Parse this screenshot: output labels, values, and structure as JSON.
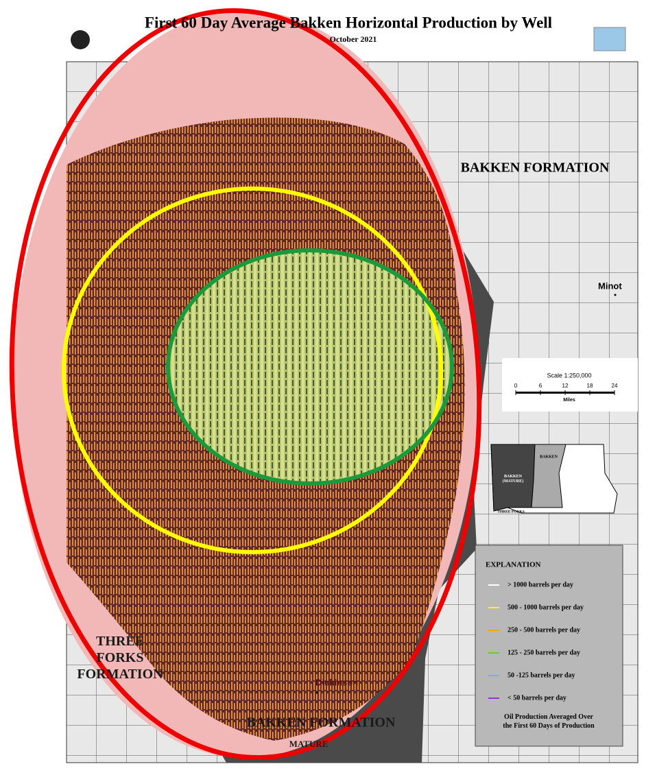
{
  "header": {
    "title": "First 60 Day Average Bakken Horizontal Production by Well",
    "subtitle": "October 2021"
  },
  "map_labels": {
    "bakken_top": "BAKKEN FORMATION",
    "minot": "Minot",
    "dickinson": "Dickinson",
    "three_forks": [
      "THREE",
      "FORKS",
      "FORMATION"
    ],
    "bakken_bottom": "BAKKEN FORMATION",
    "mature": "MATURE"
  },
  "scale": {
    "title": "Scale  1:250,000",
    "ticks": [
      0,
      6,
      12,
      18,
      24
    ],
    "unit": "Miles"
  },
  "inset": {
    "mature": [
      "BAKKEN",
      "(MATURE)"
    ],
    "bakken": "BAKKEN",
    "three_forks": "THREE FORKS"
  },
  "legend": {
    "title": "EXPLANATION",
    "items": [
      {
        "label": "> 1000 barrels per day",
        "color": "#ffffff"
      },
      {
        "label": "500 - 1000 barrels per day",
        "color": "#ffff00"
      },
      {
        "label": "250 - 500 barrels per day",
        "color": "#ffa500"
      },
      {
        "label": "125 - 250 barrels per day",
        "color": "#66cc33"
      },
      {
        "label": "50 -125 barrels per day",
        "color": "#88aadd"
      },
      {
        "label": "< 50 barrels per day",
        "color": "#9933cc"
      }
    ],
    "footer": [
      "Oil Production Averaged Over",
      "the First 60 Days of Production"
    ]
  }
}
